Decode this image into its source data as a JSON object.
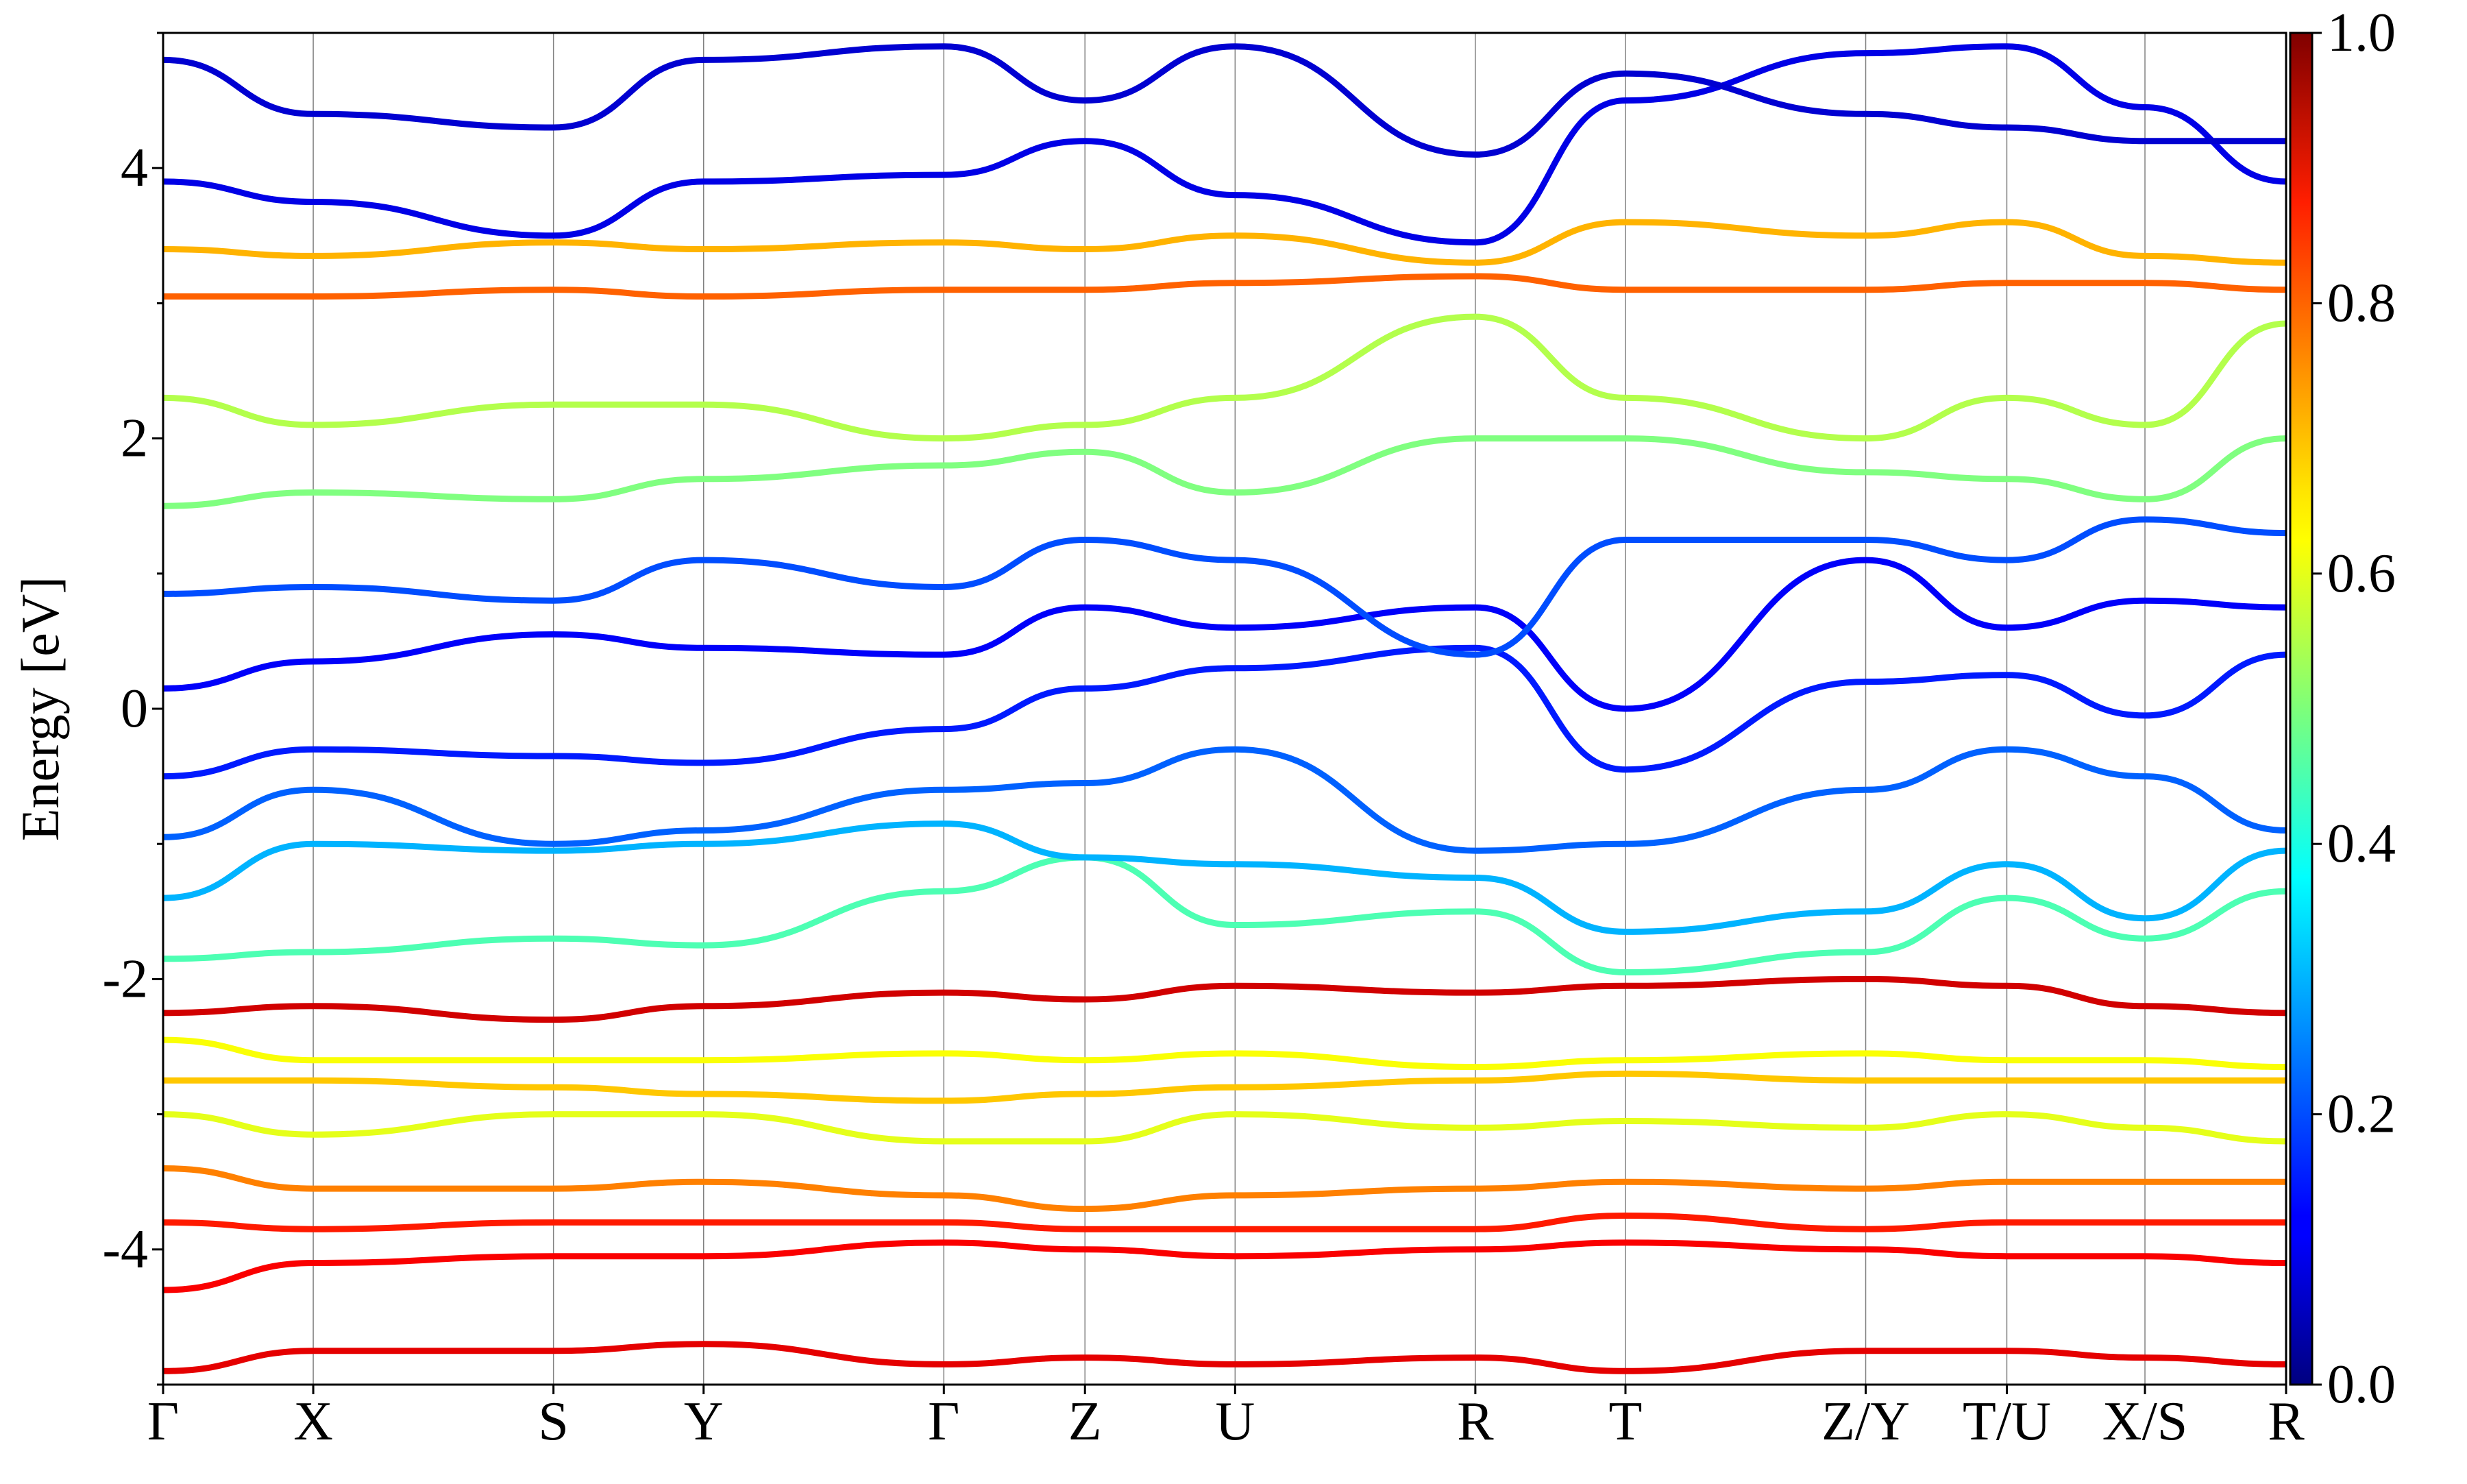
{
  "chart_data": {
    "type": "line",
    "title": "",
    "xlabel": "",
    "ylabel": "Energy [eV]",
    "ylim": [
      -5,
      5
    ],
    "y_ticks": [
      -4,
      -2,
      0,
      2,
      4
    ],
    "y_tick_labels": [
      "-4",
      "-2",
      "0",
      "2",
      "4"
    ],
    "k_path": [
      "Γ",
      "X",
      "S",
      "Y",
      "Γ",
      "Z",
      "U",
      "R",
      "T",
      "Z/Y",
      "T/U",
      "X/S",
      "R"
    ],
    "k_positions": [
      0.0,
      0.5,
      1.3,
      1.8,
      2.6,
      3.07,
      3.57,
      4.37,
      4.87,
      5.67,
      6.14,
      6.6,
      7.07
    ],
    "grid": "vertical lines at high-symmetry points",
    "colorbar": {
      "colormap": "jet",
      "range": [
        0.0,
        1.0
      ],
      "ticks": [
        0.0,
        0.2,
        0.4,
        0.6,
        0.8,
        1.0
      ],
      "tick_labels": [
        "0.0",
        "0.2",
        "0.4",
        "0.6",
        "0.8",
        "1.0"
      ],
      "placement": "right"
    },
    "bands_approx": [
      {
        "weight": 0.9,
        "energies": [
          -4.9,
          -4.75,
          -4.75,
          -4.7,
          -4.85,
          -4.8,
          -4.85,
          -4.8,
          -4.9,
          -4.75,
          -4.75,
          -4.8,
          -4.85
        ]
      },
      {
        "weight": 0.88,
        "energies": [
          -4.3,
          -4.1,
          -4.05,
          -4.05,
          -3.95,
          -4.0,
          -4.05,
          -4.0,
          -3.95,
          -4.0,
          -4.05,
          -4.05,
          -4.1
        ]
      },
      {
        "weight": 0.85,
        "energies": [
          -3.8,
          -3.85,
          -3.8,
          -3.8,
          -3.8,
          -3.85,
          -3.85,
          -3.85,
          -3.75,
          -3.85,
          -3.8,
          -3.8,
          -3.8
        ]
      },
      {
        "weight": 0.75,
        "energies": [
          -3.4,
          -3.55,
          -3.55,
          -3.5,
          -3.6,
          -3.7,
          -3.6,
          -3.55,
          -3.5,
          -3.55,
          -3.5,
          -3.5,
          -3.5
        ]
      },
      {
        "weight": 0.6,
        "energies": [
          -3.0,
          -3.15,
          -3.0,
          -3.0,
          -3.2,
          -3.2,
          -3.0,
          -3.1,
          -3.05,
          -3.1,
          -3.0,
          -3.1,
          -3.2
        ]
      },
      {
        "weight": 0.68,
        "energies": [
          -2.75,
          -2.75,
          -2.8,
          -2.85,
          -2.9,
          -2.85,
          -2.8,
          -2.75,
          -2.7,
          -2.75,
          -2.75,
          -2.75,
          -2.75
        ]
      },
      {
        "weight": 0.62,
        "energies": [
          -2.45,
          -2.6,
          -2.6,
          -2.6,
          -2.55,
          -2.6,
          -2.55,
          -2.65,
          -2.6,
          -2.55,
          -2.6,
          -2.6,
          -2.65
        ]
      },
      {
        "weight": 0.92,
        "energies": [
          -2.25,
          -2.2,
          -2.3,
          -2.2,
          -2.1,
          -2.15,
          -2.05,
          -2.1,
          -2.05,
          -2.0,
          -2.05,
          -2.2,
          -2.25
        ]
      },
      {
        "weight": 0.45,
        "energies": [
          -1.85,
          -1.8,
          -1.7,
          -1.75,
          -1.35,
          -1.1,
          -1.6,
          -1.5,
          -1.95,
          -1.8,
          -1.4,
          -1.7,
          -1.35
        ]
      },
      {
        "weight": 0.3,
        "energies": [
          -1.4,
          -1.0,
          -1.05,
          -1.0,
          -0.85,
          -1.1,
          -1.15,
          -1.25,
          -1.65,
          -1.5,
          -1.15,
          -1.55,
          -1.05
        ]
      },
      {
        "weight": 0.22,
        "energies": [
          -0.95,
          -0.6,
          -1.0,
          -0.9,
          -0.6,
          -0.55,
          -0.3,
          -1.05,
          -1.0,
          -0.6,
          -0.3,
          -0.5,
          -0.9
        ]
      },
      {
        "weight": 0.15,
        "energies": [
          -0.5,
          -0.3,
          -0.35,
          -0.4,
          -0.15,
          0.15,
          0.3,
          0.45,
          -0.45,
          0.2,
          0.25,
          -0.05,
          0.4
        ]
      },
      {
        "weight": 0.12,
        "energies": [
          0.15,
          0.35,
          0.55,
          0.45,
          0.4,
          0.75,
          0.6,
          0.75,
          0.0,
          1.1,
          0.6,
          0.8,
          0.75
        ]
      },
      {
        "weight": 0.2,
        "energies": [
          0.85,
          0.9,
          0.8,
          1.1,
          0.9,
          1.25,
          1.1,
          0.4,
          1.25,
          1.25,
          1.1,
          1.4,
          1.3
        ]
      },
      {
        "weight": 0.5,
        "energies": [
          1.5,
          1.6,
          1.55,
          1.7,
          1.8,
          1.9,
          1.6,
          2.0,
          2.0,
          1.75,
          1.7,
          1.55,
          2.0
        ]
      },
      {
        "weight": 0.55,
        "energies": [
          2.3,
          2.1,
          2.25,
          2.25,
          2.0,
          2.1,
          2.3,
          2.9,
          2.3,
          2.0,
          2.3,
          2.1,
          2.85
        ]
      },
      {
        "weight": 0.78,
        "energies": [
          3.05,
          3.05,
          3.1,
          3.05,
          3.1,
          3.1,
          3.15,
          3.2,
          3.1,
          3.1,
          3.15,
          3.15,
          3.1
        ]
      },
      {
        "weight": 0.7,
        "energies": [
          3.4,
          3.35,
          3.45,
          3.4,
          3.45,
          3.4,
          3.5,
          3.3,
          3.6,
          3.5,
          3.6,
          3.35,
          3.3
        ]
      },
      {
        "weight": 0.1,
        "energies": [
          3.9,
          3.75,
          3.5,
          3.9,
          3.95,
          4.2,
          3.8,
          3.45,
          4.5,
          4.85,
          4.9,
          4.45,
          3.9
        ]
      },
      {
        "weight": 0.08,
        "energies": [
          4.8,
          4.4,
          4.3,
          4.8,
          4.9,
          4.5,
          4.9,
          4.1,
          4.7,
          4.4,
          4.3,
          4.2,
          4.2
        ]
      }
    ]
  }
}
